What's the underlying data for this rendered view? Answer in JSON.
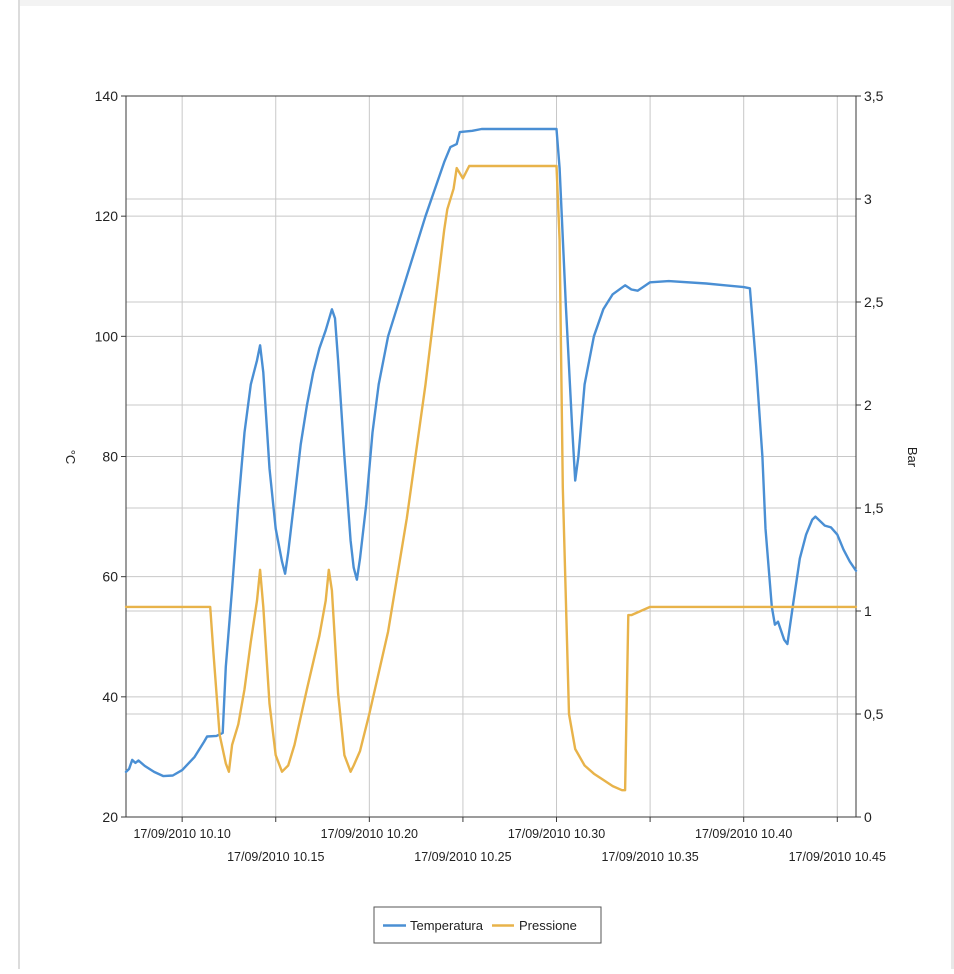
{
  "chart_data": {
    "type": "line",
    "title": "",
    "y_left": {
      "label": "°C",
      "range": [
        20,
        140
      ],
      "ticks": [
        20,
        40,
        60,
        80,
        100,
        120,
        140
      ],
      "tick_labels": [
        "20",
        "40",
        "60",
        "80",
        "100",
        "120",
        "140"
      ]
    },
    "y_right": {
      "label": "Bar",
      "range": [
        0,
        3.5
      ],
      "ticks": [
        0,
        0.5,
        1,
        1.5,
        2,
        2.5,
        3,
        3.5
      ],
      "tick_labels": [
        "0",
        "0,5",
        "1",
        "1,5",
        "2",
        "2,5",
        "3",
        "3,5"
      ]
    },
    "x_axis": {
      "range": [
        "17/09/2010 10.07",
        "17/09/2010 10.46"
      ],
      "ticks": [
        "17/09/2010 10.10",
        "17/09/2010 10.15",
        "17/09/2010 10.20",
        "17/09/2010 10.25",
        "17/09/2010 10.30",
        "17/09/2010 10.35",
        "17/09/2010 10.40",
        "17/09/2010 10.45"
      ],
      "tick_labels": [
        "17/09/2010 10.10",
        "17/09/2010 10.15",
        "17/09/2010 10.20",
        "17/09/2010 10.25",
        "17/09/2010 10.30",
        "17/09/2010 10.35",
        "17/09/2010 10.40",
        "17/09/2010 10.45"
      ]
    },
    "grid": true,
    "legend_position": "bottom-center",
    "series": [
      {
        "name": "Temperatura",
        "axis": "left",
        "color": "#4a8fd4",
        "points": [
          [
            "17/09/2010 10.07.00",
            27.5
          ],
          [
            "17/09/2010 10.07.10",
            28.0
          ],
          [
            "17/09/2010 10.07.20",
            29.5
          ],
          [
            "17/09/2010 10.07.30",
            29.0
          ],
          [
            "17/09/2010 10.07.40",
            29.4
          ],
          [
            "17/09/2010 10.08.00",
            28.5
          ],
          [
            "17/09/2010 10.08.30",
            27.5
          ],
          [
            "17/09/2010 10.09.00",
            26.8
          ],
          [
            "17/09/2010 10.09.30",
            26.9
          ],
          [
            "17/09/2010 10.10.00",
            27.8
          ],
          [
            "17/09/2010 10.10.40",
            30.0
          ],
          [
            "17/09/2010 10.11.10",
            32.5
          ],
          [
            "17/09/2010 10.11.20",
            33.4
          ],
          [
            "17/09/2010 10.11.50",
            33.5
          ],
          [
            "17/09/2010 10.12.10",
            34.0
          ],
          [
            "17/09/2010 10.12.20",
            45.0
          ],
          [
            "17/09/2010 10.12.40",
            58.0
          ],
          [
            "17/09/2010 10.13.00",
            72.0
          ],
          [
            "17/09/2010 10.13.20",
            84.0
          ],
          [
            "17/09/2010 10.13.40",
            92.0
          ],
          [
            "17/09/2010 10.14.00",
            96.0
          ],
          [
            "17/09/2010 10.14.10",
            98.5
          ],
          [
            "17/09/2010 10.14.20",
            94.0
          ],
          [
            "17/09/2010 10.14.40",
            78.0
          ],
          [
            "17/09/2010 10.15.00",
            68.0
          ],
          [
            "17/09/2010 10.15.20",
            62.5
          ],
          [
            "17/09/2010 10.15.30",
            60.5
          ],
          [
            "17/09/2010 10.15.40",
            64.0
          ],
          [
            "17/09/2010 10.16.00",
            73.0
          ],
          [
            "17/09/2010 10.16.20",
            82.0
          ],
          [
            "17/09/2010 10.16.40",
            88.5
          ],
          [
            "17/09/2010 10.17.00",
            94.0
          ],
          [
            "17/09/2010 10.17.20",
            98.0
          ],
          [
            "17/09/2010 10.17.40",
            101.0
          ],
          [
            "17/09/2010 10.18.00",
            104.5
          ],
          [
            "17/09/2010 10.18.10",
            103.0
          ],
          [
            "17/09/2010 10.18.20",
            96.0
          ],
          [
            "17/09/2010 10.18.40",
            80.0
          ],
          [
            "17/09/2010 10.19.00",
            66.0
          ],
          [
            "17/09/2010 10.19.10",
            61.5
          ],
          [
            "17/09/2010 10.19.20",
            59.5
          ],
          [
            "17/09/2010 10.19.30",
            63.0
          ],
          [
            "17/09/2010 10.19.50",
            72.0
          ],
          [
            "17/09/2010 10.20.10",
            84.0
          ],
          [
            "17/09/2010 10.20.30",
            92.0
          ],
          [
            "17/09/2010 10.21.00",
            100.0
          ],
          [
            "17/09/2010 10.22.00",
            110.0
          ],
          [
            "17/09/2010 10.23.00",
            120.0
          ],
          [
            "17/09/2010 10.24.00",
            129.0
          ],
          [
            "17/09/2010 10.24.20",
            131.5
          ],
          [
            "17/09/2010 10.24.40",
            132.0
          ],
          [
            "17/09/2010 10.24.50",
            134.0
          ],
          [
            "17/09/2010 10.25.30",
            134.2
          ],
          [
            "17/09/2010 10.26.00",
            134.5
          ],
          [
            "17/09/2010 10.28.00",
            134.5
          ],
          [
            "17/09/2010 10.30.00",
            134.5
          ],
          [
            "17/09/2010 10.30.10",
            128.0
          ],
          [
            "17/09/2010 10.30.30",
            105.0
          ],
          [
            "17/09/2010 10.30.50",
            85.0
          ],
          [
            "17/09/2010 10.31.00",
            76.0
          ],
          [
            "17/09/2010 10.31.10",
            80.0
          ],
          [
            "17/09/2010 10.31.30",
            92.0
          ],
          [
            "17/09/2010 10.32.00",
            100.0
          ],
          [
            "17/09/2010 10.32.30",
            104.5
          ],
          [
            "17/09/2010 10.33.00",
            107.0
          ],
          [
            "17/09/2010 10.33.40",
            108.5
          ],
          [
            "17/09/2010 10.34.00",
            107.8
          ],
          [
            "17/09/2010 10.34.20",
            107.6
          ],
          [
            "17/09/2010 10.34.40",
            108.3
          ],
          [
            "17/09/2010 10.35.00",
            109.0
          ],
          [
            "17/09/2010 10.36.00",
            109.2
          ],
          [
            "17/09/2010 10.38.00",
            108.8
          ],
          [
            "17/09/2010 10.39.00",
            108.5
          ],
          [
            "17/09/2010 10.40.00",
            108.2
          ],
          [
            "17/09/2010 10.40.20",
            108.0
          ],
          [
            "17/09/2010 10.40.40",
            95.0
          ],
          [
            "17/09/2010 10.41.00",
            80.0
          ],
          [
            "17/09/2010 10.41.10",
            68.0
          ],
          [
            "17/09/2010 10.41.30",
            55.0
          ],
          [
            "17/09/2010 10.41.40",
            52.0
          ],
          [
            "17/09/2010 10.41.50",
            52.5
          ],
          [
            "17/09/2010 10.42.10",
            49.5
          ],
          [
            "17/09/2010 10.42.20",
            48.8
          ],
          [
            "17/09/2010 10.42.40",
            56.0
          ],
          [
            "17/09/2010 10.43.00",
            63.0
          ],
          [
            "17/09/2010 10.43.20",
            67.0
          ],
          [
            "17/09/2010 10.43.40",
            69.5
          ],
          [
            "17/09/2010 10.43.50",
            70.0
          ],
          [
            "17/09/2010 10.44.10",
            69.0
          ],
          [
            "17/09/2010 10.44.20",
            68.5
          ],
          [
            "17/09/2010 10.44.40",
            68.2
          ],
          [
            "17/09/2010 10.45.00",
            67.0
          ],
          [
            "17/09/2010 10.45.20",
            64.5
          ],
          [
            "17/09/2010 10.45.40",
            62.5
          ],
          [
            "17/09/2010 10.46.00",
            61.0
          ]
        ]
      },
      {
        "name": "Pressione",
        "axis": "right",
        "color": "#e8b34a",
        "points": [
          [
            "17/09/2010 10.07.00",
            1.02
          ],
          [
            "17/09/2010 10.09.00",
            1.02
          ],
          [
            "17/09/2010 10.11.00",
            1.02
          ],
          [
            "17/09/2010 10.11.30",
            1.02
          ],
          [
            "17/09/2010 10.11.40",
            0.8
          ],
          [
            "17/09/2010 10.12.00",
            0.4
          ],
          [
            "17/09/2010 10.12.20",
            0.26
          ],
          [
            "17/09/2010 10.12.30",
            0.22
          ],
          [
            "17/09/2010 10.12.40",
            0.35
          ],
          [
            "17/09/2010 10.13.00",
            0.45
          ],
          [
            "17/09/2010 10.13.20",
            0.62
          ],
          [
            "17/09/2010 10.13.40",
            0.85
          ],
          [
            "17/09/2010 10.14.00",
            1.05
          ],
          [
            "17/09/2010 10.14.10",
            1.2
          ],
          [
            "17/09/2010 10.14.20",
            1.02
          ],
          [
            "17/09/2010 10.14.40",
            0.55
          ],
          [
            "17/09/2010 10.15.00",
            0.3
          ],
          [
            "17/09/2010 10.15.20",
            0.22
          ],
          [
            "17/09/2010 10.15.40",
            0.25
          ],
          [
            "17/09/2010 10.16.00",
            0.35
          ],
          [
            "17/09/2010 10.16.40",
            0.62
          ],
          [
            "17/09/2010 10.17.20",
            0.88
          ],
          [
            "17/09/2010 10.17.40",
            1.05
          ],
          [
            "17/09/2010 10.17.50",
            1.2
          ],
          [
            "17/09/2010 10.18.00",
            1.1
          ],
          [
            "17/09/2010 10.18.20",
            0.6
          ],
          [
            "17/09/2010 10.18.40",
            0.3
          ],
          [
            "17/09/2010 10.19.00",
            0.22
          ],
          [
            "17/09/2010 10.19.10",
            0.25
          ],
          [
            "17/09/2010 10.19.30",
            0.32
          ],
          [
            "17/09/2010 10.20.00",
            0.5
          ],
          [
            "17/09/2010 10.21.00",
            0.9
          ],
          [
            "17/09/2010 10.22.00",
            1.45
          ],
          [
            "17/09/2010 10.23.00",
            2.1
          ],
          [
            "17/09/2010 10.24.00",
            2.85
          ],
          [
            "17/09/2010 10.24.10",
            2.95
          ],
          [
            "17/09/2010 10.24.30",
            3.05
          ],
          [
            "17/09/2010 10.24.40",
            3.15
          ],
          [
            "17/09/2010 10.25.00",
            3.1
          ],
          [
            "17/09/2010 10.25.20",
            3.16
          ],
          [
            "17/09/2010 10.27.00",
            3.16
          ],
          [
            "17/09/2010 10.30.00",
            3.16
          ],
          [
            "17/09/2010 10.30.10",
            2.8
          ],
          [
            "17/09/2010 10.30.20",
            1.6
          ],
          [
            "17/09/2010 10.30.40",
            0.5
          ],
          [
            "17/09/2010 10.31.00",
            0.33
          ],
          [
            "17/09/2010 10.31.30",
            0.25
          ],
          [
            "17/09/2010 10.32.00",
            0.21
          ],
          [
            "17/09/2010 10.32.30",
            0.18
          ],
          [
            "17/09/2010 10.33.00",
            0.15
          ],
          [
            "17/09/2010 10.33.30",
            0.13
          ],
          [
            "17/09/2010 10.33.40",
            0.13
          ],
          [
            "17/09/2010 10.33.50",
            0.98
          ],
          [
            "17/09/2010 10.34.00",
            0.98
          ],
          [
            "17/09/2010 10.34.30",
            1.0
          ],
          [
            "17/09/2010 10.35.00",
            1.02
          ],
          [
            "17/09/2010 10.46.00",
            1.02
          ]
        ]
      }
    ]
  }
}
